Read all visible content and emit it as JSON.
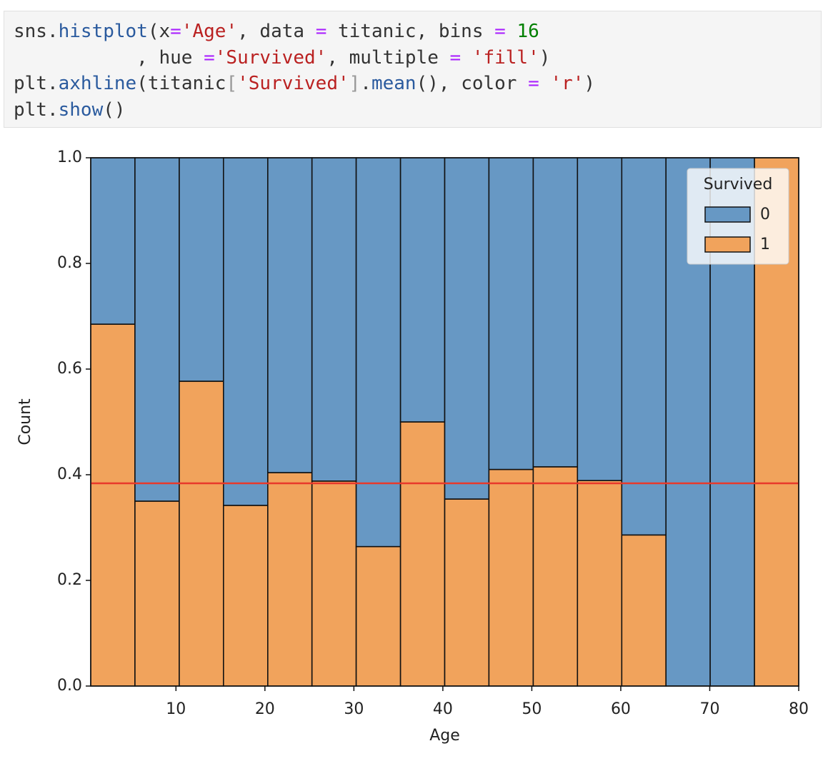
{
  "code": {
    "lines": [
      [
        {
          "text": "sns.",
          "color": "#333333"
        },
        {
          "text": "histplot",
          "color": "#2a5a9e"
        },
        {
          "text": "(x",
          "color": "#333333"
        },
        {
          "text": "=",
          "color": "#aa22ff"
        },
        {
          "text": "'Age'",
          "color": "#ba2121"
        },
        {
          "text": ", data ",
          "color": "#333333"
        },
        {
          "text": "=",
          "color": "#aa22ff"
        },
        {
          "text": " titanic, bins ",
          "color": "#333333"
        },
        {
          "text": "=",
          "color": "#aa22ff"
        },
        {
          "text": " ",
          "color": "#333333"
        },
        {
          "text": "16",
          "color": "#008000"
        }
      ],
      [
        {
          "text": "           , hue ",
          "color": "#333333"
        },
        {
          "text": "=",
          "color": "#aa22ff"
        },
        {
          "text": "'Survived'",
          "color": "#ba2121"
        },
        {
          "text": ", multiple ",
          "color": "#333333"
        },
        {
          "text": "=",
          "color": "#aa22ff"
        },
        {
          "text": " ",
          "color": "#333333"
        },
        {
          "text": "'fill'",
          "color": "#ba2121"
        },
        {
          "text": ")",
          "color": "#333333"
        }
      ],
      [
        {
          "text": "plt.",
          "color": "#333333"
        },
        {
          "text": "axhline",
          "color": "#2a5a9e"
        },
        {
          "text": "(titanic",
          "color": "#333333"
        },
        {
          "text": "[",
          "color": "#999999"
        },
        {
          "text": "'Survived'",
          "color": "#ba2121"
        },
        {
          "text": "]",
          "color": "#999999"
        },
        {
          "text": ".",
          "color": "#333333"
        },
        {
          "text": "mean",
          "color": "#2a5a9e"
        },
        {
          "text": "(), color ",
          "color": "#333333"
        },
        {
          "text": "=",
          "color": "#aa22ff"
        },
        {
          "text": " ",
          "color": "#333333"
        },
        {
          "text": "'r'",
          "color": "#ba2121"
        },
        {
          "text": ")",
          "color": "#333333"
        }
      ],
      [
        {
          "text": "plt.",
          "color": "#333333"
        },
        {
          "text": "show",
          "color": "#2a5a9e"
        },
        {
          "text": "()",
          "color": "#333333"
        }
      ]
    ]
  },
  "chart_data": {
    "type": "histogram",
    "xlabel": "Age",
    "ylabel": "Count",
    "bins": [
      0.42,
      5.39,
      10.37,
      15.34,
      20.32,
      25.29,
      30.26,
      35.24,
      40.21,
      45.18,
      50.16,
      55.13,
      60.11,
      65.08,
      70.05,
      75.03,
      80
    ],
    "series": [
      {
        "name": "0",
        "color": "#6798c4",
        "values": [
          0.315,
          0.65,
          0.423,
          0.658,
          0.596,
          0.612,
          0.736,
          0.5,
          0.646,
          0.59,
          0.585,
          0.611,
          0.714,
          1,
          1,
          0
        ]
      },
      {
        "name": "1",
        "color": "#f1a35c",
        "values": [
          0.685,
          0.35,
          0.577,
          0.342,
          0.404,
          0.388,
          0.264,
          0.5,
          0.354,
          0.41,
          0.415,
          0.389,
          0.286,
          0,
          0,
          1
        ]
      }
    ],
    "hline": {
      "value": 0.3838,
      "color": "#e8392b"
    },
    "xlim": [
      0.42,
      80
    ],
    "xticks": [
      10,
      20,
      30,
      40,
      50,
      60,
      70,
      80
    ],
    "ylim": [
      0,
      1
    ],
    "yticks": [
      {
        "value": 0,
        "label": "0.0"
      },
      0.2,
      0.4,
      0.6,
      0.8,
      {
        "value": 1,
        "label": "1.0"
      }
    ],
    "legend": {
      "title": "Survived",
      "loc": "upper right"
    }
  }
}
